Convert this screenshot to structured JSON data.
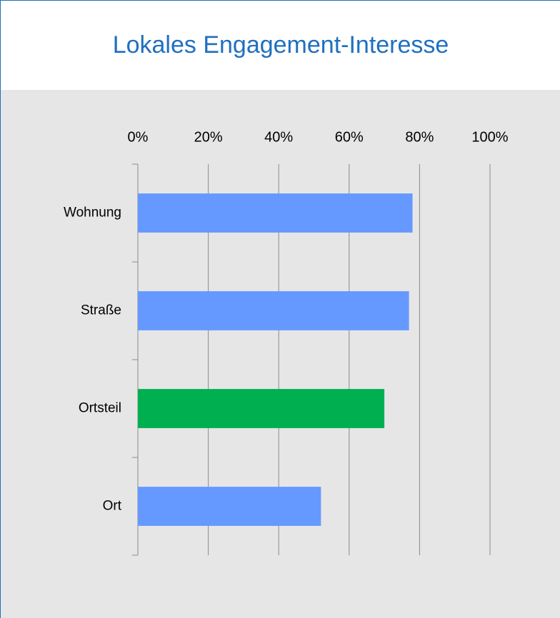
{
  "chart_data": {
    "type": "hbar",
    "title": "Lokales Engagement-Interesse",
    "categories": [
      "Wohnung",
      "Straße",
      "Ortsteil",
      "Ort"
    ],
    "values": [
      78,
      77,
      70,
      52
    ],
    "colors": [
      "#6699ff",
      "#6699ff",
      "#00b050",
      "#6699ff"
    ],
    "xlim": [
      0,
      100
    ],
    "xticks": [
      {
        "value": 0,
        "label": "0%"
      },
      {
        "value": 20,
        "label": "20%"
      },
      {
        "value": 40,
        "label": "40%"
      },
      {
        "value": 60,
        "label": "60%"
      },
      {
        "value": 80,
        "label": "80%"
      },
      {
        "value": 100,
        "label": "100%"
      }
    ],
    "grid": true
  }
}
